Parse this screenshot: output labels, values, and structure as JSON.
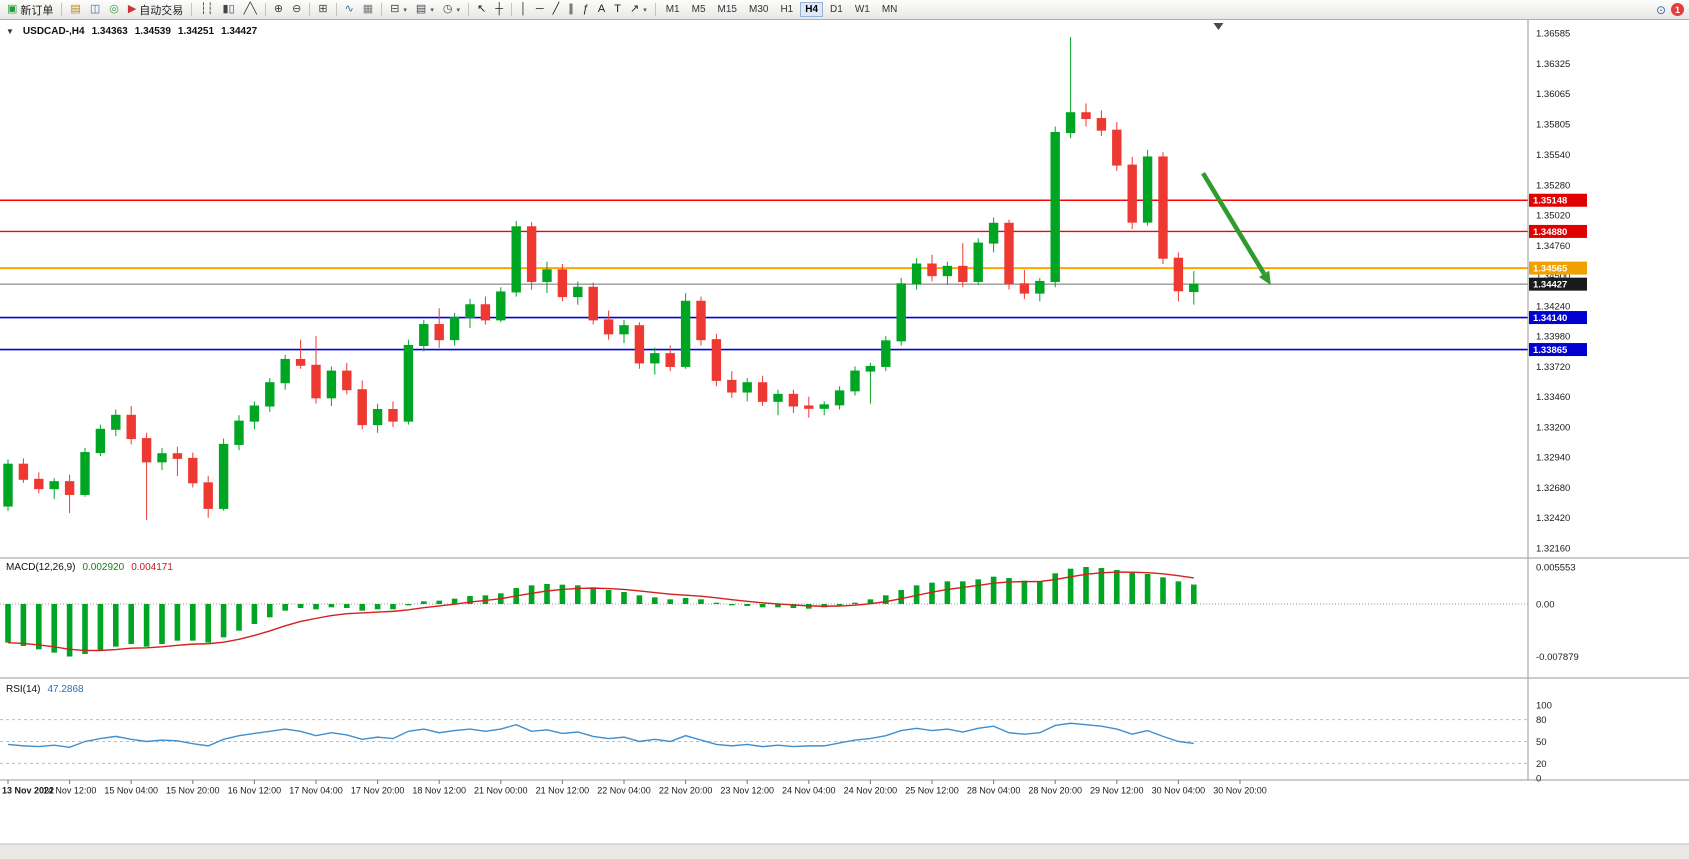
{
  "header": {
    "symbol": "USDCAD-,H4",
    "open": "1.34363",
    "high": "1.34539",
    "low": "1.34251",
    "close": "1.34427"
  },
  "toolbar": {
    "buttons": [
      {
        "id": "new-order",
        "label": "新订单",
        "glyph": "▣",
        "color": "#1e9c3a"
      },
      {
        "sep": true
      },
      {
        "id": "market-watch",
        "glyph": "▤",
        "color": "#b8860b"
      },
      {
        "id": "data-window",
        "glyph": "◫",
        "color": "#2f6fb0"
      },
      {
        "id": "navigator",
        "glyph": "◎",
        "color": "#2f9e41"
      },
      {
        "id": "autotrading",
        "label": "自动交易",
        "glyph": "▶",
        "color": "#c93535"
      },
      {
        "sep": true
      },
      {
        "id": "bar-chart",
        "glyph": "┆┆",
        "color": "#444"
      },
      {
        "id": "candlestick-chart",
        "glyph": "▮▯",
        "color": "#444"
      },
      {
        "id": "line-chart",
        "glyph": "╱╲",
        "color": "#444"
      },
      {
        "sep": true
      },
      {
        "id": "zoom-in",
        "glyph": "⊕",
        "color": "#444"
      },
      {
        "id": "zoom-out",
        "glyph": "⊖",
        "color": "#444"
      },
      {
        "sep": true
      },
      {
        "id": "tile-windows",
        "glyph": "⊞",
        "color": "#444"
      },
      {
        "sep": true
      },
      {
        "id": "indicators",
        "glyph": "∿",
        "color": "#2f6fb0"
      },
      {
        "id": "objects-list",
        "glyph": "▦",
        "color": "#777"
      },
      {
        "sep": true
      },
      {
        "id": "new-chart",
        "glyph": "⊟",
        "color": "#444",
        "dropdown": true
      },
      {
        "id": "profiles",
        "glyph": "▤",
        "color": "#444",
        "dropdown": true
      },
      {
        "id": "periods",
        "glyph": "◷",
        "color": "#444",
        "dropdown": true
      },
      {
        "sep": true
      },
      {
        "id": "cursor",
        "glyph": "↖",
        "color": "#222"
      },
      {
        "id": "crosshair",
        "glyph": "┼",
        "color": "#222"
      },
      {
        "sep": true
      },
      {
        "id": "vertical-line",
        "glyph": "│",
        "color": "#222"
      },
      {
        "id": "horizontal-line",
        "glyph": "─",
        "color": "#222"
      },
      {
        "id": "trendline",
        "glyph": "╱",
        "color": "#222"
      },
      {
        "id": "equidistant-channel",
        "glyph": "∥",
        "color": "#222"
      },
      {
        "id": "fibonacci",
        "glyph": "ƒ",
        "color": "#222"
      },
      {
        "id": "text",
        "glyph": "A",
        "color": "#222"
      },
      {
        "id": "text-label",
        "glyph": "T",
        "color": "#222"
      },
      {
        "id": "arrows-tool",
        "glyph": "↗",
        "color": "#222",
        "dropdown": true
      },
      {
        "sep": true
      }
    ],
    "timeframes": {
      "items": [
        "M1",
        "M5",
        "M15",
        "M30",
        "H1",
        "H4",
        "D1",
        "W1",
        "MN"
      ],
      "active": "H4"
    },
    "right": [
      {
        "id": "search",
        "glyph": "⊙"
      },
      {
        "id": "notifications",
        "badge": "1"
      }
    ]
  },
  "chart_data": {
    "type": "candlestick",
    "symbol": "USDCAD-",
    "timeframe": "H4",
    "bid": 1.34427,
    "shift_marker_t": 78.6,
    "current_candle": {
      "open": 1.34363,
      "high": 1.34539,
      "low": 1.34251,
      "close": 1.34427
    },
    "price_axis": [
      "1.36585",
      "1.36325",
      "1.36065",
      "1.35805",
      "1.35540",
      "1.35280",
      "1.35020",
      "1.34760",
      "1.34500",
      "1.34240",
      "1.33980",
      "1.33720",
      "1.33460",
      "1.33200",
      "1.32940",
      "1.32680",
      "1.32420",
      "1.32160"
    ],
    "time_labels": [
      "13 Nov 2022",
      "14 Nov 12:00",
      "15 Nov 04:00",
      "15 Nov 20:00",
      "16 Nov 12:00",
      "17 Nov 04:00",
      "17 Nov 20:00",
      "18 Nov 12:00",
      "21 Nov 00:00",
      "21 Nov 12:00",
      "22 Nov 04:00",
      "22 Nov 20:00",
      "23 Nov 12:00",
      "24 Nov 04:00",
      "24 Nov 20:00",
      "25 Nov 12:00",
      "28 Nov 04:00",
      "28 Nov 20:00",
      "29 Nov 12:00",
      "30 Nov 04:00",
      "30 Nov 20:00"
    ],
    "hlines": [
      {
        "name": "resistance-line-1",
        "label": "1.35148",
        "price": 1.35148,
        "color": "#FF0000",
        "tag": "#E00000",
        "width": 1.4
      },
      {
        "name": "resistance-line-2",
        "label": "1.34880",
        "price": 1.3488,
        "color": "#FF0000",
        "tag": "#E00000",
        "width": 1.4
      },
      {
        "name": "pivot-line-orange",
        "label": "1.34565",
        "price": 1.34565,
        "color": "#FFA500",
        "tag": "#F0A000",
        "width": 2
      },
      {
        "name": "current-bid-line",
        "label": "1.34427",
        "price": 1.34427,
        "color": "#707070",
        "tag": "#1a1a1a",
        "width": 1
      },
      {
        "name": "support-line-1",
        "label": "1.34140",
        "price": 1.3414,
        "color": "#0000E0",
        "tag": "#0000D0",
        "width": 1.6
      },
      {
        "name": "support-line-2",
        "label": "1.33865",
        "price": 1.33865,
        "color": "#0000E0",
        "tag": "#0000D0",
        "width": 1.6
      }
    ],
    "candles": [
      [
        1.3252,
        1.3292,
        1.3248,
        1.3288
      ],
      [
        1.3288,
        1.3293,
        1.3272,
        1.3275
      ],
      [
        1.3275,
        1.3281,
        1.3263,
        1.3267
      ],
      [
        1.3267,
        1.3276,
        1.3258,
        1.3273
      ],
      [
        1.3273,
        1.3279,
        1.3246,
        1.3262
      ],
      [
        1.3262,
        1.3302,
        1.326,
        1.3298
      ],
      [
        1.3298,
        1.3322,
        1.3295,
        1.3318
      ],
      [
        1.3318,
        1.3335,
        1.3312,
        1.333
      ],
      [
        1.333,
        1.3338,
        1.3305,
        1.331
      ],
      [
        1.331,
        1.3315,
        1.324,
        1.329
      ],
      [
        1.329,
        1.3302,
        1.3283,
        1.3297
      ],
      [
        1.3297,
        1.3303,
        1.3278,
        1.3293
      ],
      [
        1.3293,
        1.3298,
        1.3268,
        1.3272
      ],
      [
        1.3272,
        1.3278,
        1.3242,
        1.325
      ],
      [
        1.325,
        1.331,
        1.3248,
        1.3305
      ],
      [
        1.3305,
        1.333,
        1.33,
        1.3325
      ],
      [
        1.3325,
        1.3342,
        1.3318,
        1.3338
      ],
      [
        1.3338,
        1.3362,
        1.3333,
        1.3358
      ],
      [
        1.3358,
        1.3382,
        1.3352,
        1.3378
      ],
      [
        1.3378,
        1.3395,
        1.337,
        1.3373
      ],
      [
        1.3373,
        1.3398,
        1.334,
        1.3345
      ],
      [
        1.3345,
        1.3372,
        1.3338,
        1.3368
      ],
      [
        1.3368,
        1.3375,
        1.3348,
        1.3352
      ],
      [
        1.3352,
        1.336,
        1.3318,
        1.3322
      ],
      [
        1.3322,
        1.334,
        1.3315,
        1.3335
      ],
      [
        1.3335,
        1.3342,
        1.332,
        1.3325
      ],
      [
        1.3325,
        1.3395,
        1.3322,
        1.339
      ],
      [
        1.339,
        1.3412,
        1.3385,
        1.3408
      ],
      [
        1.3408,
        1.3422,
        1.3388,
        1.3395
      ],
      [
        1.3395,
        1.3418,
        1.339,
        1.3414
      ],
      [
        1.3414,
        1.343,
        1.3405,
        1.3425
      ],
      [
        1.3425,
        1.3432,
        1.3408,
        1.3412
      ],
      [
        1.3412,
        1.344,
        1.341,
        1.3436
      ],
      [
        1.3436,
        1.3497,
        1.3432,
        1.3492
      ],
      [
        1.3492,
        1.3496,
        1.3438,
        1.3445
      ],
      [
        1.3445,
        1.3462,
        1.3435,
        1.3455
      ],
      [
        1.3455,
        1.346,
        1.3428,
        1.3432
      ],
      [
        1.3432,
        1.3445,
        1.3425,
        1.344
      ],
      [
        1.344,
        1.3444,
        1.3408,
        1.3412
      ],
      [
        1.3412,
        1.342,
        1.3395,
        1.34
      ],
      [
        1.34,
        1.3412,
        1.3392,
        1.3407
      ],
      [
        1.3407,
        1.341,
        1.337,
        1.3375
      ],
      [
        1.3375,
        1.3388,
        1.3365,
        1.3383
      ],
      [
        1.3383,
        1.339,
        1.3368,
        1.3372
      ],
      [
        1.3372,
        1.3435,
        1.337,
        1.3428
      ],
      [
        1.3428,
        1.3432,
        1.339,
        1.3395
      ],
      [
        1.3395,
        1.34,
        1.3355,
        1.336
      ],
      [
        1.336,
        1.3368,
        1.3345,
        1.335
      ],
      [
        1.335,
        1.3362,
        1.3342,
        1.3358
      ],
      [
        1.3358,
        1.3364,
        1.3338,
        1.3342
      ],
      [
        1.3342,
        1.3352,
        1.333,
        1.3348
      ],
      [
        1.3348,
        1.3352,
        1.3332,
        1.3338
      ],
      [
        1.3338,
        1.3346,
        1.3328,
        1.3336
      ],
      [
        1.3336,
        1.3342,
        1.333,
        1.3339
      ],
      [
        1.3339,
        1.3355,
        1.3335,
        1.3351
      ],
      [
        1.3351,
        1.3372,
        1.3347,
        1.3368
      ],
      [
        1.3368,
        1.3375,
        1.334,
        1.3372
      ],
      [
        1.3372,
        1.3398,
        1.3368,
        1.3394
      ],
      [
        1.3394,
        1.3448,
        1.339,
        1.3443
      ],
      [
        1.3443,
        1.3465,
        1.3438,
        1.346
      ],
      [
        1.346,
        1.3468,
        1.3445,
        1.345
      ],
      [
        1.345,
        1.3462,
        1.3442,
        1.3458
      ],
      [
        1.3458,
        1.3478,
        1.344,
        1.3445
      ],
      [
        1.3445,
        1.3482,
        1.3442,
        1.3478
      ],
      [
        1.3478,
        1.35,
        1.347,
        1.3495
      ],
      [
        1.3495,
        1.3498,
        1.3438,
        1.3443
      ],
      [
        1.3443,
        1.3455,
        1.343,
        1.3435
      ],
      [
        1.3435,
        1.3448,
        1.3428,
        1.3445
      ],
      [
        1.3445,
        1.3578,
        1.344,
        1.3573
      ],
      [
        1.3573,
        1.3655,
        1.3568,
        1.359
      ],
      [
        1.359,
        1.3598,
        1.3578,
        1.3585
      ],
      [
        1.3585,
        1.3592,
        1.357,
        1.3575
      ],
      [
        1.3575,
        1.3582,
        1.354,
        1.3545
      ],
      [
        1.3545,
        1.3552,
        1.349,
        1.3496
      ],
      [
        1.3496,
        1.3558,
        1.3493,
        1.3552
      ],
      [
        1.3552,
        1.3556,
        1.346,
        1.3465
      ],
      [
        1.3465,
        1.347,
        1.3428,
        1.3437
      ],
      [
        1.34363,
        1.34539,
        1.34251,
        1.34427
      ]
    ],
    "macd": {
      "label": "MACD(12,26,9)",
      "display_value": "0.002920",
      "display_signal": "0.004171",
      "axis": [
        "0.005553",
        "0.00",
        "-0.007879"
      ],
      "histogram": [
        -0.0058,
        -0.0063,
        -0.0068,
        -0.0073,
        -0.00788,
        -0.0075,
        -0.007,
        -0.0064,
        -0.006,
        -0.0064,
        -0.006,
        -0.0055,
        -0.0055,
        -0.0058,
        -0.005,
        -0.004,
        -0.003,
        -0.002,
        -0.001,
        -0.0006,
        -0.0008,
        -0.0005,
        -0.0006,
        -0.001,
        -0.0008,
        -0.0008,
        -0.0002,
        0.0004,
        0.0005,
        0.0008,
        0.0012,
        0.0013,
        0.0016,
        0.0024,
        0.0028,
        0.003,
        0.0029,
        0.0028,
        0.0025,
        0.0021,
        0.0018,
        0.0013,
        0.001,
        0.0007,
        0.0009,
        0.0007,
        0.0002,
        -0.0002,
        -0.0003,
        -0.0005,
        -0.0005,
        -0.0006,
        -0.0007,
        -0.0005,
        -0.0002,
        0.0002,
        0.0007,
        0.0013,
        0.0021,
        0.0028,
        0.0032,
        0.0034,
        0.0034,
        0.0037,
        0.0041,
        0.0039,
        0.0035,
        0.0034,
        0.0046,
        0.0053,
        0.00555,
        0.0054,
        0.0051,
        0.0047,
        0.0045,
        0.004,
        0.0034,
        0.00292
      ]
    },
    "rsi": {
      "label": "RSI(14)",
      "display_value": "47.2868",
      "levels": [
        80,
        50,
        20
      ],
      "axis": [
        "100",
        "80",
        "50",
        "20",
        "0"
      ],
      "series": [
        46,
        44,
        43,
        45,
        42,
        50,
        54,
        57,
        53,
        50,
        52,
        51,
        47,
        44,
        53,
        58,
        61,
        64,
        67,
        64,
        58,
        62,
        59,
        53,
        56,
        54,
        64,
        67,
        62,
        65,
        67,
        64,
        67,
        73,
        64,
        66,
        61,
        63,
        57,
        54,
        56,
        50,
        53,
        50,
        58,
        52,
        46,
        44,
        46,
        43,
        45,
        43,
        44,
        44,
        48,
        52,
        54,
        58,
        65,
        68,
        65,
        67,
        63,
        68,
        71,
        62,
        60,
        62,
        72,
        75,
        73,
        71,
        67,
        60,
        65,
        57,
        50,
        47.2868
      ]
    },
    "arrow": {
      "from": {
        "t": 77.6,
        "price": 1.3538
      },
      "to": {
        "t": 82,
        "price": 1.3442
      }
    },
    "colors": {
      "bull": "#00A524",
      "bear": "#EE3832",
      "macd_bar": "#00A524",
      "macd_signal": "#D61F1F",
      "rsi_line": "#3F8FD0",
      "arrow": "#2E9B2E",
      "bid": "#707070"
    }
  }
}
